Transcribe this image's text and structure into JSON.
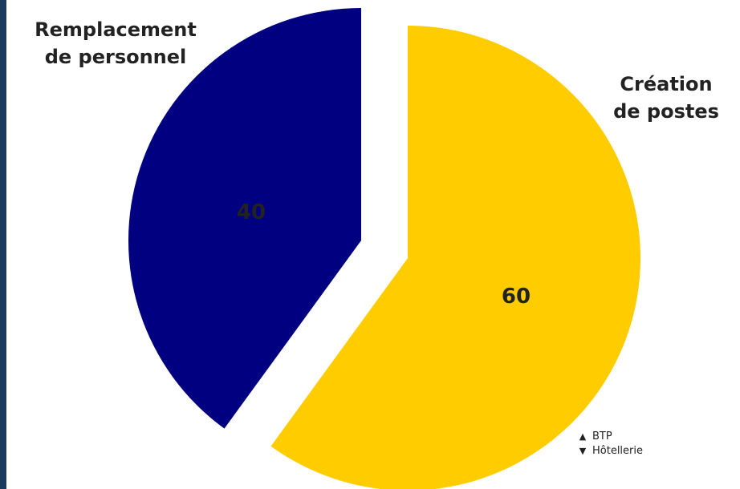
{
  "chart_data": {
    "type": "pie",
    "exploded": true,
    "categories": [
      "Remplacement de personnel",
      "Création de postes"
    ],
    "values": [
      40,
      60
    ],
    "colors": [
      "#000080",
      "#ffcc00"
    ],
    "category_labels": {
      "remplacement_line1": "Remplacement",
      "remplacement_line2": "de personnel",
      "creation_line1": "Création",
      "creation_line2": "de postes"
    },
    "value_labels": [
      "40",
      "60"
    ],
    "legend": [
      {
        "marker": "▲",
        "marker_name": "triangle-up-icon",
        "label": "BTP"
      },
      {
        "marker": "▼",
        "marker_name": "triangle-down-icon",
        "label": "Hôtellerie"
      }
    ]
  }
}
